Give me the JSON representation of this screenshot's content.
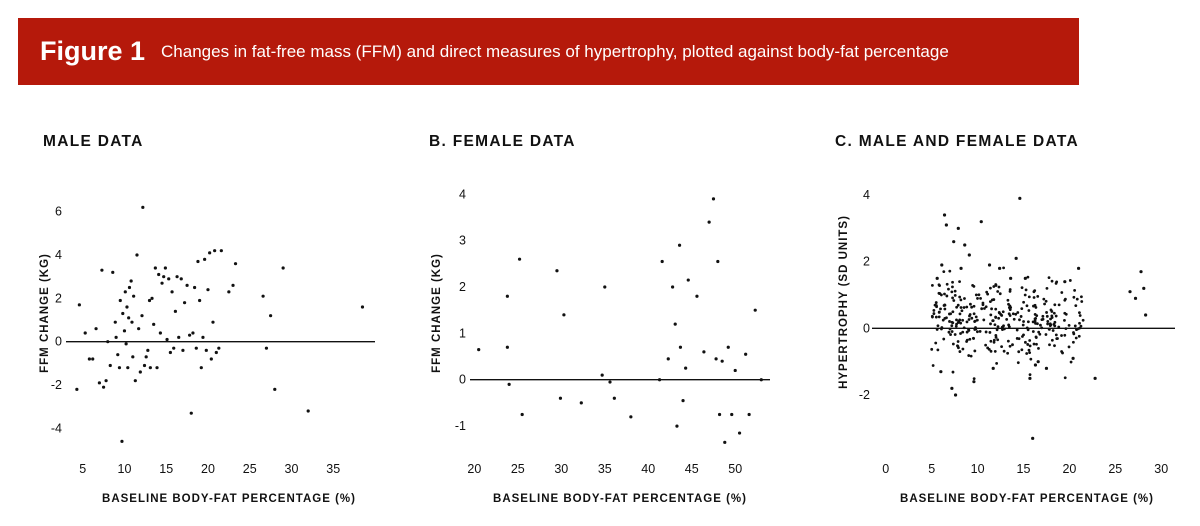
{
  "figure": {
    "label": "Figure 1",
    "caption": "Changes in fat-free mass (FFM) and direct measures of hypertrophy, plotted against body-fat percentage",
    "accent_color": "#b5190b"
  },
  "chart_data": [
    {
      "type": "scatter",
      "title": "MALE DATA",
      "xlabel": "BASELINE BODY-FAT PERCENTAGE (%)",
      "ylabel": "FFM CHANGE (KG)",
      "xlim": [
        3,
        40
      ],
      "ylim": [
        -5,
        7
      ],
      "xticks": [
        5,
        10,
        15,
        20,
        25,
        30,
        35
      ],
      "yticks": [
        -4,
        -2,
        0,
        2,
        4,
        6
      ],
      "zero_line": true,
      "grid": false,
      "x": [
        4.3,
        4.6,
        5.3,
        5.8,
        6.2,
        6.6,
        7.0,
        7.3,
        7.5,
        7.8,
        8.0,
        8.3,
        8.6,
        8.9,
        9.0,
        9.2,
        9.4,
        9.5,
        9.7,
        9.8,
        10.0,
        10.1,
        10.2,
        10.3,
        10.4,
        10.5,
        10.6,
        10.8,
        10.9,
        11.0,
        11.1,
        11.3,
        11.5,
        11.7,
        11.9,
        12.1,
        12.2,
        12.4,
        12.6,
        12.8,
        13.0,
        13.1,
        13.3,
        13.5,
        13.7,
        13.9,
        14.1,
        14.3,
        14.5,
        14.7,
        14.9,
        15.1,
        15.3,
        15.5,
        15.7,
        15.9,
        16.1,
        16.3,
        16.5,
        16.8,
        17.0,
        17.2,
        17.5,
        17.8,
        18.0,
        18.2,
        18.4,
        18.6,
        18.8,
        19.0,
        19.2,
        19.4,
        19.6,
        19.8,
        20.0,
        20.2,
        20.4,
        20.6,
        20.8,
        21.0,
        21.3,
        21.6,
        22.5,
        23.0,
        23.3,
        26.6,
        27.0,
        27.5,
        28.0,
        29.0,
        32.0,
        38.5
      ],
      "y": [
        -2.2,
        1.7,
        0.4,
        -0.8,
        -0.8,
        0.6,
        -1.9,
        3.3,
        -2.1,
        -1.8,
        0.0,
        -1.1,
        3.2,
        0.9,
        0.2,
        -0.6,
        -1.2,
        1.9,
        -4.6,
        1.3,
        0.5,
        2.3,
        -0.1,
        1.6,
        -1.2,
        1.1,
        2.5,
        2.8,
        0.9,
        -0.7,
        2.1,
        -1.8,
        4.0,
        0.6,
        -1.4,
        1.2,
        6.2,
        -1.1,
        -0.7,
        -0.4,
        1.9,
        -1.2,
        2.0,
        0.8,
        3.4,
        -1.2,
        3.1,
        0.4,
        2.7,
        3.0,
        3.4,
        0.1,
        2.9,
        -0.5,
        2.3,
        -0.3,
        1.4,
        3.0,
        0.2,
        2.9,
        -0.4,
        1.8,
        2.6,
        0.3,
        -3.3,
        0.4,
        2.5,
        -0.3,
        3.7,
        1.9,
        -1.2,
        0.2,
        3.8,
        -0.4,
        2.4,
        4.1,
        -0.8,
        0.9,
        4.2,
        -0.5,
        -0.3,
        4.2,
        2.3,
        2.6,
        3.6,
        2.1,
        -0.3,
        1.2,
        -2.2,
        3.4,
        -3.2,
        1.6
      ]
    },
    {
      "type": "scatter",
      "title": "B. FEMALE DATA",
      "xlabel": "BASELINE BODY-FAT PERCENTAGE (%)",
      "ylabel": "FFM CHANGE (KG)",
      "xlim": [
        19.5,
        54
      ],
      "ylim": [
        -1.3,
        4.2
      ],
      "xticks": [
        20,
        25,
        30,
        35,
        40,
        45,
        50
      ],
      "yticks": [
        -1,
        0,
        1,
        2,
        3,
        4
      ],
      "zero_line": true,
      "grid": false,
      "x": [
        20.5,
        23.8,
        23.8,
        24.0,
        25.2,
        25.5,
        29.5,
        29.9,
        30.3,
        32.3,
        34.7,
        35.0,
        35.6,
        36.1,
        38.0,
        41.3,
        41.6,
        42.3,
        42.8,
        43.1,
        43.3,
        43.6,
        43.7,
        44.0,
        44.3,
        44.6,
        45.6,
        46.4,
        47.0,
        47.5,
        47.8,
        48.0,
        48.2,
        48.5,
        48.8,
        49.2,
        49.6,
        50.0,
        50.5,
        51.2,
        51.6,
        52.3,
        53.0
      ],
      "y": [
        0.65,
        1.8,
        0.7,
        -0.1,
        2.6,
        -0.75,
        2.35,
        -0.4,
        1.4,
        -0.5,
        0.1,
        2.0,
        -0.05,
        -0.4,
        -0.8,
        0.0,
        2.55,
        0.45,
        2.0,
        1.2,
        -1.0,
        2.9,
        0.7,
        -0.45,
        0.25,
        2.15,
        1.8,
        0.6,
        3.4,
        3.9,
        0.45,
        2.55,
        -0.75,
        0.4,
        -1.35,
        0.7,
        -0.75,
        0.2,
        -1.15,
        0.55,
        -0.75,
        1.5,
        0.0
      ]
    },
    {
      "type": "scatter",
      "title": "C. MALE AND FEMALE DATA",
      "xlabel": "BASELINE BODY-FAT PERCENTAGE (%)",
      "ylabel": "HYPERTROPHY (SD UNITS)",
      "xlim": [
        -1.5,
        31.5
      ],
      "ylim": [
        -3.5,
        4.3
      ],
      "xticks": [
        0,
        5,
        10,
        15,
        20,
        25,
        30
      ],
      "yticks": [
        -2,
        0,
        2,
        4
      ],
      "zero_line": true,
      "grid": false,
      "cloud_seed": 7,
      "x": [
        5.6,
        6.4,
        6.6,
        7.2,
        7.6,
        7.9,
        8.6,
        10.4,
        14.6,
        16.0,
        6.1,
        7.4,
        8.2,
        9.1,
        11.3,
        12.4,
        13.6,
        14.2,
        15.7,
        17.5,
        19.5,
        21.0,
        22.8,
        26.6,
        27.2,
        27.8,
        28.1,
        28.3,
        15.2,
        16.3,
        6.0,
        9.6,
        11.7,
        16.6,
        20.4
      ],
      "y": [
        1.5,
        3.4,
        3.1,
        -1.8,
        -2.0,
        3.0,
        2.5,
        3.2,
        3.9,
        -3.3,
        1.9,
        2.6,
        1.8,
        2.2,
        1.9,
        1.8,
        1.5,
        2.1,
        -1.5,
        -1.2,
        1.4,
        1.8,
        -1.5,
        1.1,
        0.9,
        1.7,
        1.2,
        0.4,
        1.5,
        -1.1,
        -1.3,
        -1.6,
        -1.2,
        -1.0,
        -0.9
      ]
    }
  ]
}
